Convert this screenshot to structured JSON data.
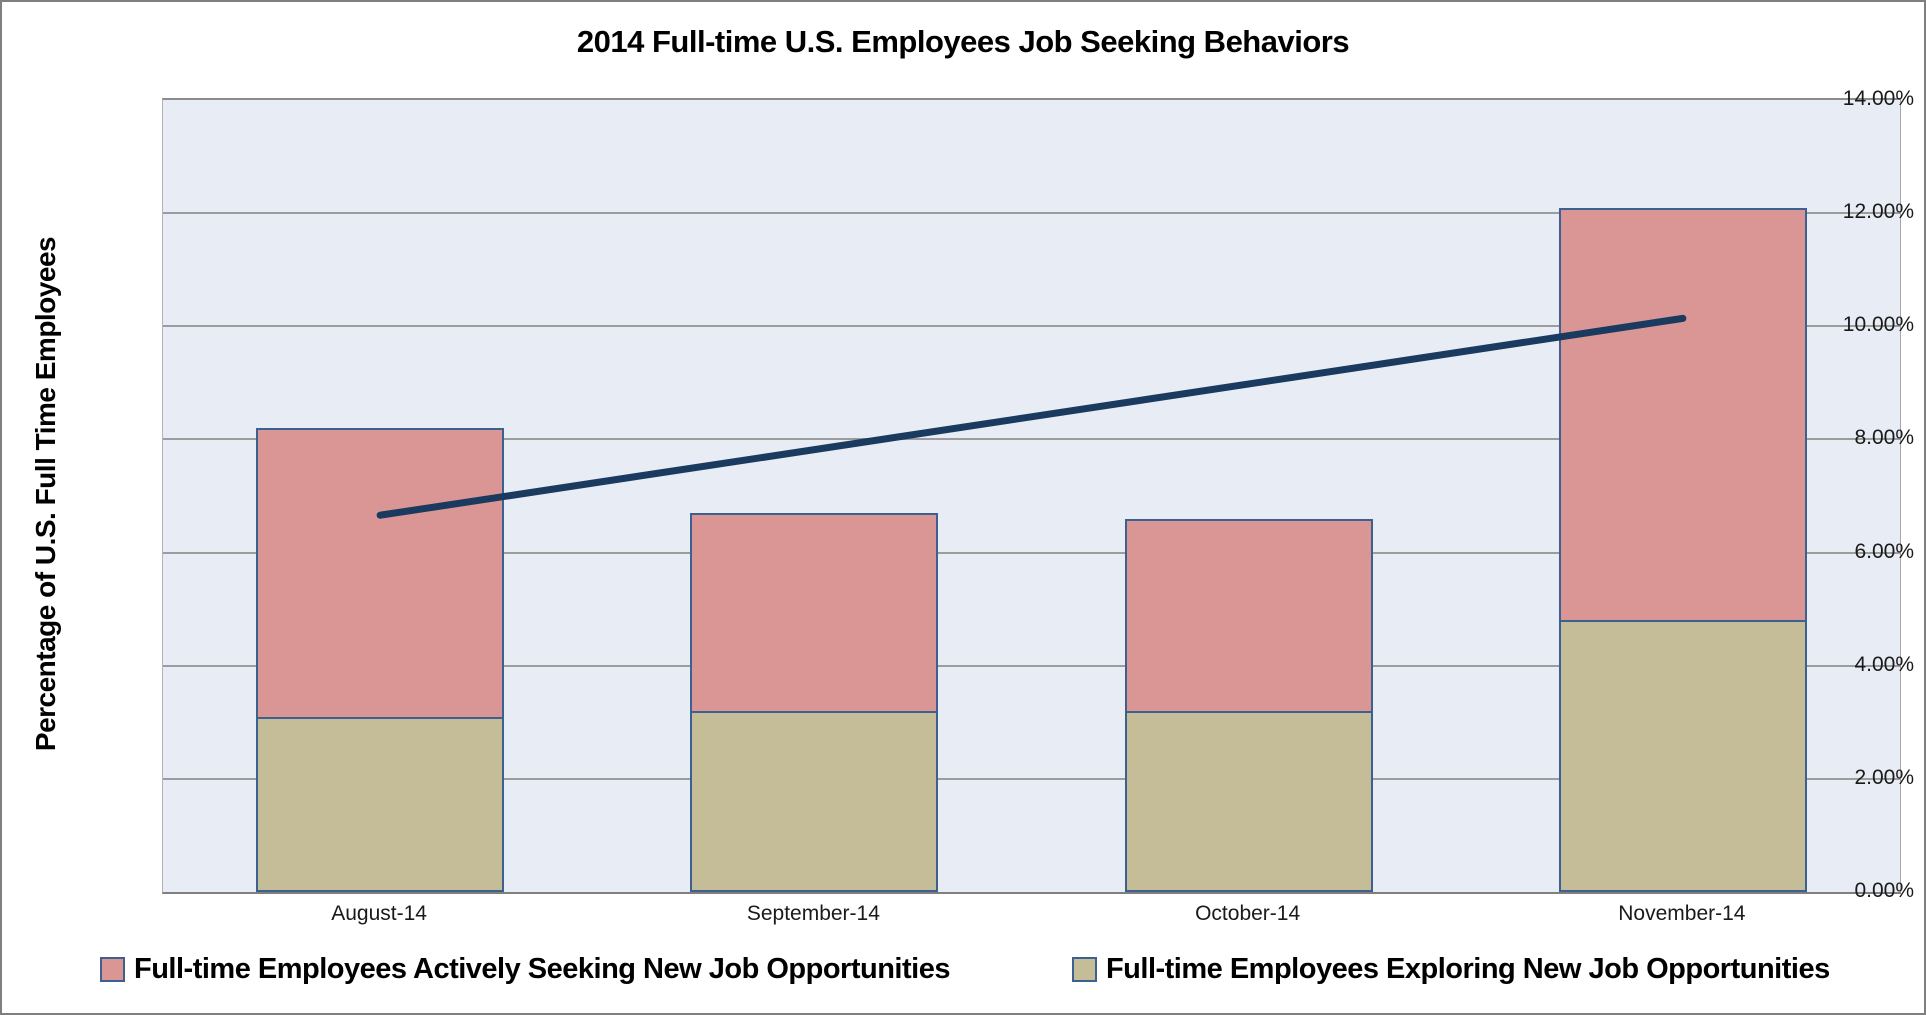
{
  "title": "2014 Full-time U.S. Employees Job Seeking Behaviors",
  "y_axis": {
    "title": "Percentage of U.S. Full Time Employees",
    "tick_labels": [
      "0.00%",
      "2.00%",
      "4.00%",
      "6.00%",
      "8.00%",
      "10.00%",
      "12.00%",
      "14.00%"
    ]
  },
  "legend": {
    "items": [
      {
        "label": "Full-time Employees Actively Seeking New Job Opportunities",
        "color": "#d99694"
      },
      {
        "label": "Full-time Employees Exploring New Job Opportunities",
        "color": "#c4bd97"
      }
    ]
  },
  "colors": {
    "plot_background": "#e8ecf5",
    "gridline": "#9c9c9c",
    "bar_border": "#3c6090",
    "trend_line": "#1b3a5f",
    "actively_seeking_fill": "#d99694",
    "exploring_fill": "#c4bd97"
  },
  "chart_data": {
    "type": "bar",
    "stacked": true,
    "title": "2014 Full-time U.S. Employees Job Seeking Behaviors",
    "ylabel": "Percentage of U.S. Full Time Employees",
    "xlabel": "",
    "ylim": [
      0,
      14
    ],
    "ytick_step": 2,
    "ytick_format": "0.00%",
    "grid": true,
    "legend_position": "bottom",
    "categories": [
      "August-14",
      "September-14",
      "October-14",
      "November-14"
    ],
    "series": [
      {
        "name": "Full-time Employees Exploring New Job Opportunities",
        "role": "bottom-segment",
        "color": "#c4bd97",
        "values": [
          3.1,
          3.2,
          3.2,
          4.8
        ]
      },
      {
        "name": "Full-time Employees Actively Seeking New Job Opportunities",
        "role": "top-segment",
        "color": "#d99694",
        "values": [
          5.1,
          3.5,
          3.4,
          7.3
        ]
      }
    ],
    "stack_totals": [
      8.2,
      6.7,
      6.6,
      12.1
    ],
    "trendline": {
      "description": "linear trend of stack totals, drawn from first to last category center",
      "color": "#1b3a5f",
      "start_value": 6.66,
      "end_value": 10.14
    }
  }
}
